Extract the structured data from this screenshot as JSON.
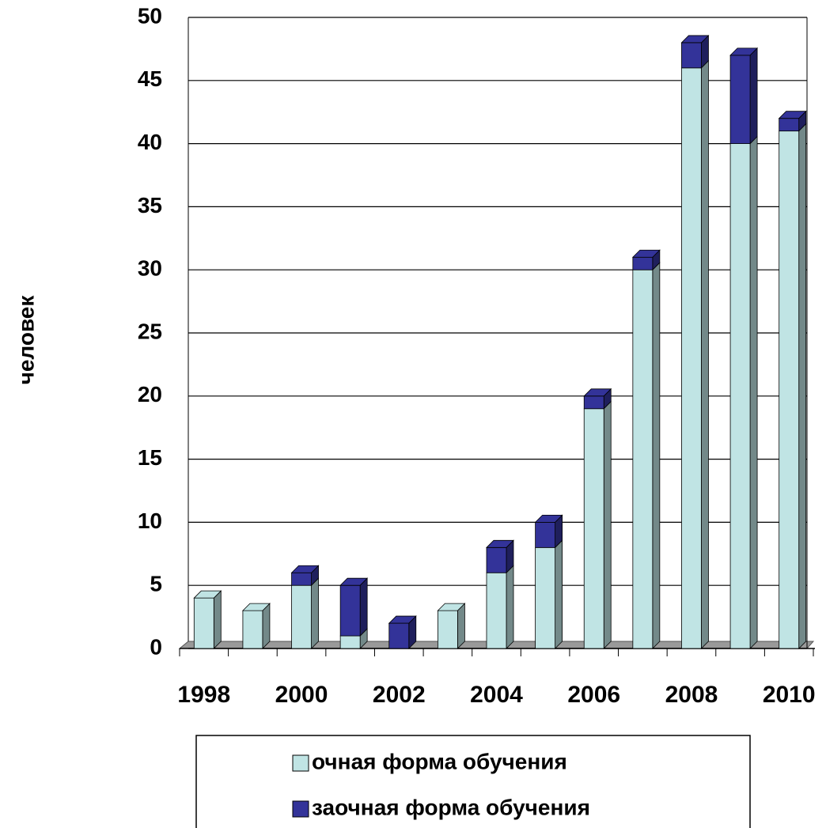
{
  "chart_data": {
    "type": "bar",
    "stacked": true,
    "y_label": "человек",
    "categories": [
      "1998",
      null,
      "2000",
      null,
      "2002",
      null,
      "2004",
      null,
      "2006",
      null,
      "2008",
      null,
      "2010"
    ],
    "series": [
      {
        "name": "очная форма обучения",
        "color": "#c0e4e4",
        "values": [
          4,
          3,
          5,
          1,
          0,
          3,
          6,
          8,
          19,
          30,
          46,
          40,
          41
        ]
      },
      {
        "name": "заочная форма обучения",
        "color": "#333399",
        "values": [
          0,
          0,
          1,
          4,
          2,
          0,
          2,
          2,
          1,
          1,
          2,
          7,
          1
        ]
      }
    ],
    "ylim": [
      0,
      50
    ],
    "yticks": [
      0,
      5,
      10,
      15,
      20,
      25,
      30,
      35,
      40,
      45,
      50
    ],
    "grid": true
  }
}
